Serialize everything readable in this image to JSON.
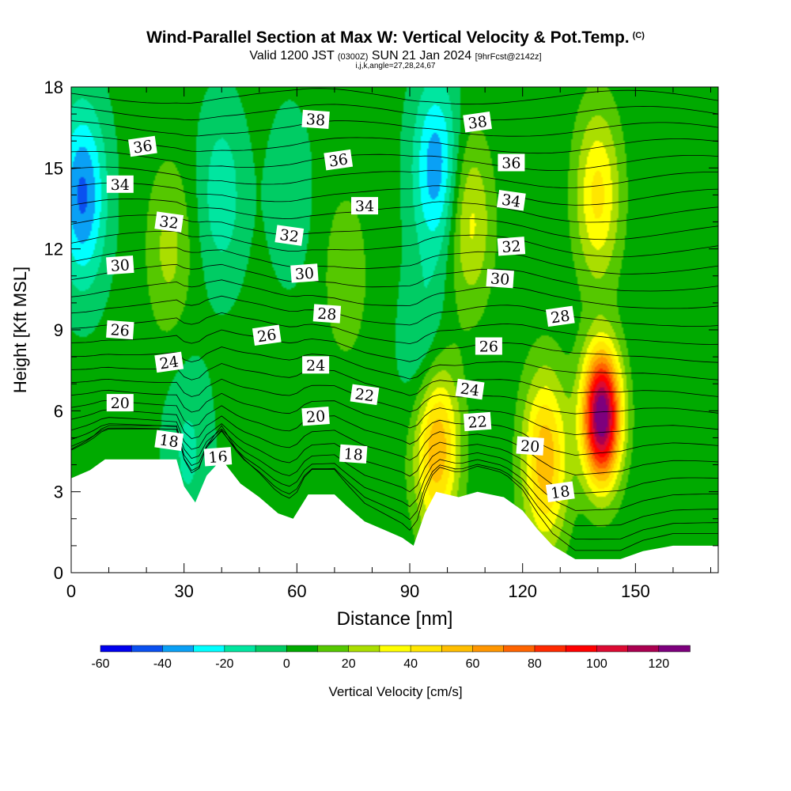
{
  "header": {
    "title": "Wind-Parallel Section at Max W: Vertical Velocity & Pot.Temp.",
    "copyright": "(C)",
    "valid_prefix": "Valid 1200 JST",
    "valid_utc": "(0300Z)",
    "valid_date": "SUN 21 Jan 2024",
    "forecast": "[9hrFcst@2142z]",
    "indices": "i,j,k,angle=27,28,24,67"
  },
  "chart_data": {
    "type": "heatmap",
    "xlabel": "Distance [nm]",
    "ylabel": "Height [Kft MSL]",
    "xlim": [
      0,
      172
    ],
    "ylim": [
      0,
      18
    ],
    "x_ticks": [
      0,
      30,
      60,
      90,
      120,
      150
    ],
    "y_ticks": [
      0,
      3,
      6,
      9,
      12,
      15,
      18
    ],
    "colorbar": {
      "label": "Vertical Velocity [cm/s]",
      "min": -60,
      "max": 130,
      "step": 10,
      "tick_labels": [
        -60,
        -40,
        -20,
        0,
        20,
        40,
        60,
        80,
        100,
        120
      ],
      "colors": [
        "#0000ee",
        "#0a50f0",
        "#0aa0f5",
        "#00ffff",
        "#00e6a0",
        "#00cc64",
        "#00aa00",
        "#55c800",
        "#aade00",
        "#ffff00",
        "#ffe600",
        "#ffbe00",
        "#ff9600",
        "#ff6400",
        "#ff2a00",
        "#ff0000",
        "#dc0a32",
        "#aa0050",
        "#7d007d"
      ]
    },
    "terrain_kft": [
      [
        0,
        3.5
      ],
      [
        5,
        3.8
      ],
      [
        9,
        4.2
      ],
      [
        28,
        4.2
      ],
      [
        30,
        3.2
      ],
      [
        33,
        2.6
      ],
      [
        36,
        3.6
      ],
      [
        40,
        4.2
      ],
      [
        45,
        3.3
      ],
      [
        50,
        2.8
      ],
      [
        55,
        2.2
      ],
      [
        59,
        2.0
      ],
      [
        63,
        2.9
      ],
      [
        70,
        2.9
      ],
      [
        73,
        2.5
      ],
      [
        78,
        1.9
      ],
      [
        83,
        1.6
      ],
      [
        88,
        1.3
      ],
      [
        91,
        1.0
      ],
      [
        94,
        2.2
      ],
      [
        97,
        3.0
      ],
      [
        103,
        2.8
      ],
      [
        108,
        3.0
      ],
      [
        115,
        2.8
      ],
      [
        120,
        2.3
      ],
      [
        124,
        1.6
      ],
      [
        128,
        1.0
      ],
      [
        134,
        0.5
      ],
      [
        146,
        0.5
      ],
      [
        152,
        0.8
      ],
      [
        160,
        1.0
      ],
      [
        172,
        1.0
      ]
    ],
    "updraft_cores": [
      {
        "x": 141,
        "z": 5.8,
        "peak": 130
      },
      {
        "x": 126,
        "z": 4.2,
        "peak": 55
      },
      {
        "x": 97,
        "z": 4.8,
        "peak": 60
      },
      {
        "x": 140,
        "z": 14.0,
        "peak": 40
      },
      {
        "x": 106,
        "z": 13.0,
        "peak": 30
      },
      {
        "x": 26,
        "z": 12.0,
        "peak": 20
      },
      {
        "x": 73,
        "z": 11.0,
        "peak": 15
      }
    ],
    "downdraft_cores": [
      {
        "x": 3,
        "z": 14.0,
        "peak": -45
      },
      {
        "x": 97,
        "z": 15.0,
        "peak": -40
      },
      {
        "x": 40,
        "z": 14.0,
        "peak": -20
      },
      {
        "x": 94,
        "z": 8.0,
        "peak": -20
      },
      {
        "x": 31,
        "z": 4.5,
        "peak": -15
      },
      {
        "x": 58,
        "z": 14.0,
        "peak": -10
      }
    ],
    "isentrope_labels": [
      {
        "text": "36",
        "x": 19,
        "z": 15.8
      },
      {
        "text": "34",
        "x": 13,
        "z": 14.4
      },
      {
        "text": "32",
        "x": 26,
        "z": 13.0
      },
      {
        "text": "30",
        "x": 13,
        "z": 11.4
      },
      {
        "text": "26",
        "x": 13,
        "z": 9.0
      },
      {
        "text": "24",
        "x": 26,
        "z": 7.8
      },
      {
        "text": "20",
        "x": 13,
        "z": 6.3
      },
      {
        "text": "18",
        "x": 26,
        "z": 4.9
      },
      {
        "text": "16",
        "x": 39,
        "z": 4.3
      },
      {
        "text": "38",
        "x": 65,
        "z": 16.8
      },
      {
        "text": "36",
        "x": 71,
        "z": 15.3
      },
      {
        "text": "34",
        "x": 78,
        "z": 13.6
      },
      {
        "text": "32",
        "x": 58,
        "z": 12.5
      },
      {
        "text": "30",
        "x": 62,
        "z": 11.1
      },
      {
        "text": "28",
        "x": 68,
        "z": 9.6
      },
      {
        "text": "26",
        "x": 52,
        "z": 8.8
      },
      {
        "text": "24",
        "x": 65,
        "z": 7.7
      },
      {
        "text": "22",
        "x": 78,
        "z": 6.6
      },
      {
        "text": "20",
        "x": 65,
        "z": 5.8
      },
      {
        "text": "18",
        "x": 75,
        "z": 4.4
      },
      {
        "text": "38",
        "x": 108,
        "z": 16.7
      },
      {
        "text": "36",
        "x": 117,
        "z": 15.2
      },
      {
        "text": "34",
        "x": 117,
        "z": 13.8
      },
      {
        "text": "32",
        "x": 117,
        "z": 12.1
      },
      {
        "text": "30",
        "x": 114,
        "z": 10.9
      },
      {
        "text": "28",
        "x": 130,
        "z": 9.5
      },
      {
        "text": "26",
        "x": 111,
        "z": 8.4
      },
      {
        "text": "24",
        "x": 106,
        "z": 6.8
      },
      {
        "text": "22",
        "x": 108,
        "z": 5.6
      },
      {
        "text": "20",
        "x": 122,
        "z": 4.7
      },
      {
        "text": "18",
        "x": 130,
        "z": 3.0
      }
    ]
  }
}
